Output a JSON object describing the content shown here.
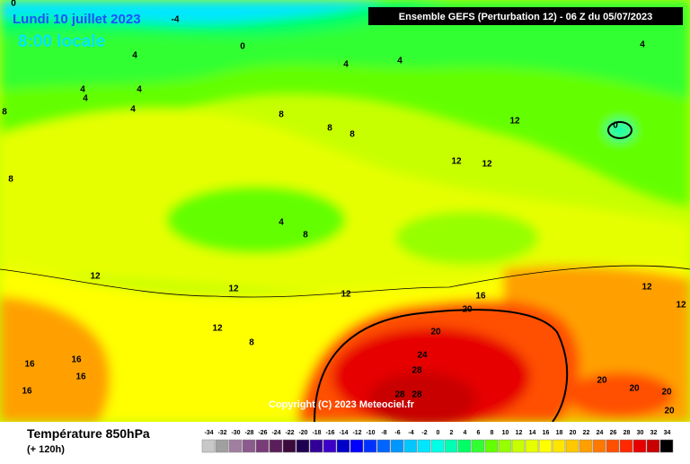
{
  "header": {
    "title": "Ensemble GEFS  (Perturbation 12)  -  06 Z du 05/07/2023",
    "date": "Lundi 10 juillet 2023",
    "time": "8:00 locale"
  },
  "copyright": "Copyright (C) 2023 Meteociel.fr",
  "legend": {
    "title": "Température 850hPa",
    "subtitle": "(+ 120h)",
    "scale": [
      {
        "value": -34,
        "color": "#c8c8c8"
      },
      {
        "value": -32,
        "color": "#a0a0a0"
      },
      {
        "value": -30,
        "color": "#a07fa0"
      },
      {
        "value": -28,
        "color": "#8c5a8c"
      },
      {
        "value": -26,
        "color": "#783c78"
      },
      {
        "value": -24,
        "color": "#5a1e5a"
      },
      {
        "value": -22,
        "color": "#3c0a3c"
      },
      {
        "value": -20,
        "color": "#1e0050"
      },
      {
        "value": -18,
        "color": "#320096"
      },
      {
        "value": -16,
        "color": "#3c00c8"
      },
      {
        "value": -14,
        "color": "#0000c8"
      },
      {
        "value": -12,
        "color": "#0000ff"
      },
      {
        "value": -10,
        "color": "#0032ff"
      },
      {
        "value": -8,
        "color": "#0064ff"
      },
      {
        "value": -6,
        "color": "#0096ff"
      },
      {
        "value": -4,
        "color": "#00c8ff"
      },
      {
        "value": -2,
        "color": "#00e6ff"
      },
      {
        "value": 0,
        "color": "#00ffe6"
      },
      {
        "value": 2,
        "color": "#00ffb4"
      },
      {
        "value": 4,
        "color": "#00ff64"
      },
      {
        "value": 6,
        "color": "#32ff32"
      },
      {
        "value": 8,
        "color": "#64ff00"
      },
      {
        "value": 10,
        "color": "#96ff00"
      },
      {
        "value": 12,
        "color": "#c8ff00"
      },
      {
        "value": 14,
        "color": "#e6ff00"
      },
      {
        "value": 16,
        "color": "#ffff00"
      },
      {
        "value": 18,
        "color": "#ffe600"
      },
      {
        "value": 20,
        "color": "#ffc800"
      },
      {
        "value": 22,
        "color": "#ffa000"
      },
      {
        "value": 24,
        "color": "#ff7800"
      },
      {
        "value": 26,
        "color": "#ff5000"
      },
      {
        "value": 28,
        "color": "#ff2800"
      },
      {
        "value": 30,
        "color": "#e60000"
      },
      {
        "value": 32,
        "color": "#c80000"
      },
      {
        "value": 34,
        "color": "#000000"
      }
    ]
  },
  "contour_labels": [
    "-4",
    "0",
    "0",
    "4",
    "4",
    "4",
    "4",
    "4",
    "4",
    "4",
    "4",
    "8",
    "8",
    "8",
    "8",
    "8",
    "4",
    "8",
    "12",
    "12",
    "12",
    "12",
    "12",
    "12",
    "12",
    "12",
    "12",
    "8",
    "0",
    "16",
    "16",
    "16",
    "16",
    "16",
    "20",
    "20",
    "20",
    "20",
    "20",
    "20",
    "24",
    "28",
    "28",
    "28"
  ]
}
